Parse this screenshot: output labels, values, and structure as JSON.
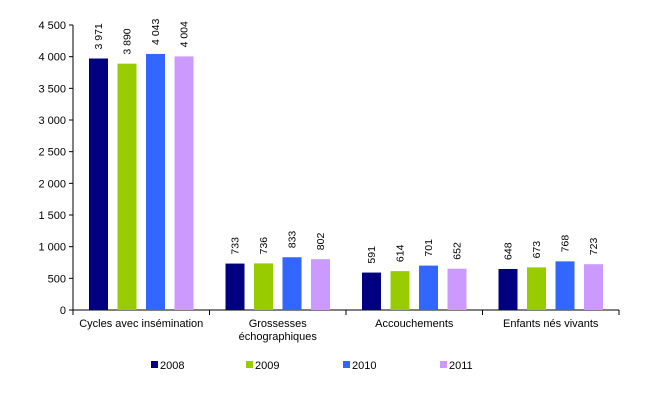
{
  "chart_data": {
    "type": "bar",
    "categories": [
      [
        "Cycles avec insémination"
      ],
      [
        "Grossesses",
        "échographiques"
      ],
      [
        "Accouchements"
      ],
      [
        "Enfants nés vivants"
      ]
    ],
    "series": [
      {
        "name": "2008",
        "color": "#000080",
        "values": [
          3971,
          733,
          591,
          648
        ],
        "labels": [
          "3 971",
          "733",
          "591",
          "648"
        ]
      },
      {
        "name": "2009",
        "color": "#99CC00",
        "values": [
          3890,
          736,
          614,
          673
        ],
        "labels": [
          "3 890",
          "736",
          "614",
          "673"
        ]
      },
      {
        "name": "2010",
        "color": "#3366FF",
        "values": [
          4043,
          833,
          701,
          768
        ],
        "labels": [
          "4 043",
          "833",
          "701",
          "768"
        ]
      },
      {
        "name": "2011",
        "color": "#CC99FF",
        "values": [
          4004,
          802,
          652,
          723
        ],
        "labels": [
          "4 004",
          "802",
          "652",
          "723"
        ]
      }
    ],
    "ylim": [
      0,
      4500
    ],
    "yticks": [
      0,
      500,
      1000,
      1500,
      2000,
      2500,
      3000,
      3500,
      4000,
      4500
    ],
    "ytick_labels": [
      "0",
      "500",
      "1 000",
      "1 500",
      "2 000",
      "2 500",
      "3 000",
      "3 500",
      "4 000",
      "4 500"
    ],
    "grid": false,
    "legend": "bottom",
    "title": "",
    "xlabel": "",
    "ylabel": ""
  }
}
